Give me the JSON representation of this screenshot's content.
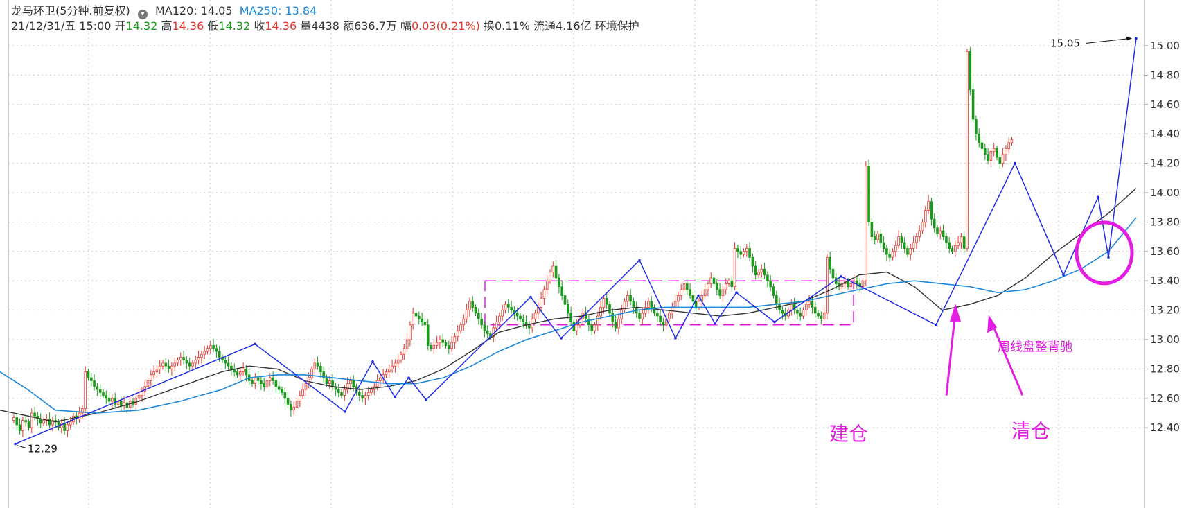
{
  "header": {
    "name": "龙马环卫(5分钟.前复权)",
    "ma120_label": "MA120: 14.05",
    "ma250_label": "MA250: 13.84",
    "datetime": "21/12/31/五 15:00",
    "open_label": "开",
    "open_value": "14.32",
    "high_label": "高",
    "high_value": "14.36",
    "low_label": "低",
    "low_value": "14.32",
    "close_label": "收",
    "close_value": "14.36",
    "volume_label": "量4438",
    "amount_label": "额636.7万",
    "change_label": "幅",
    "change_value": "0.03(0.21%)",
    "turnover_label": "换0.11%",
    "float_label": "流通4.16亿",
    "sector_label": "环境保护"
  },
  "colors": {
    "up": "#e8352a",
    "down": "#1a9a1a",
    "ma120": "#333333",
    "ma250": "#1e88d8",
    "zigzag": "#1f2ee6",
    "annotation": "#e21ee2",
    "grid": "#c8c8c8"
  },
  "chart_data": {
    "type": "candlestick",
    "ylim": [
      12.3,
      15.12
    ],
    "yticks": [
      "12.40",
      "12.60",
      "12.80",
      "13.00",
      "13.20",
      "13.40",
      "13.60",
      "13.80",
      "14.00",
      "14.20",
      "14.40",
      "14.60",
      "14.80",
      "15.00"
    ],
    "series": [
      {
        "name": "MA120",
        "kind": "line",
        "x": [
          0,
          40,
          80,
          140,
          200,
          260,
          320,
          360,
          400,
          440,
          480,
          520,
          560,
          600,
          640,
          680,
          720,
          760,
          800,
          840,
          880,
          920,
          960,
          1000,
          1040,
          1080,
          1120,
          1160,
          1200,
          1240,
          1280,
          1320,
          1360,
          1400,
          1440,
          1480,
          1520,
          1560,
          1600,
          1640
        ],
        "values": [
          12.52,
          12.48,
          12.44,
          12.5,
          12.58,
          12.68,
          12.78,
          12.82,
          12.8,
          12.72,
          12.68,
          12.66,
          12.68,
          12.72,
          12.8,
          12.92,
          13.05,
          13.1,
          13.14,
          13.16,
          13.2,
          13.22,
          13.2,
          13.18,
          13.16,
          13.18,
          13.22,
          13.26,
          13.34,
          13.44,
          13.46,
          13.36,
          13.2,
          13.24,
          13.3,
          13.42,
          13.58,
          13.72,
          13.86,
          14.03
        ]
      },
      {
        "name": "MA250",
        "kind": "line",
        "x": [
          0,
          40,
          80,
          140,
          200,
          260,
          320,
          360,
          400,
          440,
          480,
          520,
          560,
          600,
          640,
          680,
          720,
          760,
          800,
          840,
          880,
          920,
          960,
          1000,
          1040,
          1080,
          1120,
          1160,
          1200,
          1240,
          1280,
          1320,
          1360,
          1400,
          1440,
          1480,
          1520,
          1560,
          1600,
          1640
        ],
        "values": [
          12.78,
          12.66,
          12.52,
          12.5,
          12.52,
          12.58,
          12.66,
          12.74,
          12.76,
          12.76,
          12.74,
          12.72,
          12.7,
          12.7,
          12.74,
          12.82,
          12.92,
          13.0,
          13.06,
          13.12,
          13.16,
          13.2,
          13.22,
          13.22,
          13.22,
          13.22,
          13.24,
          13.26,
          13.3,
          13.34,
          13.38,
          13.4,
          13.38,
          13.36,
          13.32,
          13.34,
          13.4,
          13.48,
          13.6,
          13.83
        ]
      },
      {
        "name": "zigzag",
        "kind": "polyline",
        "x": [
          22,
          368,
          498,
          538,
          570,
          590,
          615,
          766,
          810,
          923,
          975,
          1008,
          1032,
          1063,
          1118,
          1214,
          1351,
          1465,
          1535,
          1585,
          1600,
          1640
        ],
        "values": [
          12.29,
          12.97,
          12.51,
          12.85,
          12.61,
          12.74,
          12.59,
          13.29,
          13.01,
          13.54,
          13.01,
          13.3,
          13.11,
          13.32,
          13.12,
          13.43,
          13.1,
          14.2,
          13.44,
          13.97,
          13.56,
          15.05
        ]
      }
    ],
    "candles": {
      "x_start": 20,
      "x_step": 4.3,
      "closes": [
        12.47,
        12.42,
        12.38,
        12.45,
        12.44,
        12.4,
        12.5,
        12.48,
        12.46,
        12.43,
        12.45,
        12.46,
        12.42,
        12.45,
        12.44,
        12.4,
        12.43,
        12.38,
        12.42,
        12.44,
        12.48,
        12.46,
        12.5,
        12.53,
        12.78,
        12.74,
        12.72,
        12.68,
        12.66,
        12.64,
        12.62,
        12.6,
        12.58,
        12.6,
        12.56,
        12.58,
        12.55,
        12.57,
        12.54,
        12.58,
        12.56,
        12.6,
        12.62,
        12.65,
        12.68,
        12.72,
        12.76,
        12.78,
        12.8,
        12.82,
        12.84,
        12.82,
        12.8,
        12.82,
        12.84,
        12.86,
        12.88,
        12.86,
        12.84,
        12.82,
        12.84,
        12.86,
        12.88,
        12.9,
        12.92,
        12.94,
        12.96,
        12.94,
        12.92,
        12.88,
        12.86,
        12.84,
        12.82,
        12.8,
        12.78,
        12.76,
        12.78,
        12.8,
        12.76,
        12.72,
        12.7,
        12.74,
        12.72,
        12.7,
        12.68,
        12.72,
        12.74,
        12.72,
        12.68,
        12.66,
        12.64,
        12.6,
        12.56,
        12.52,
        12.54,
        12.58,
        12.62,
        12.66,
        12.7,
        12.74,
        12.8,
        12.84,
        12.82,
        12.78,
        12.74,
        12.7,
        12.72,
        12.68,
        12.66,
        12.64,
        12.62,
        12.66,
        12.7,
        12.72,
        12.68,
        12.64,
        12.62,
        12.6,
        12.62,
        12.64,
        12.66,
        12.68,
        12.72,
        12.74,
        12.76,
        12.78,
        12.8,
        12.82,
        12.84,
        12.86,
        12.9,
        12.94,
        13.0,
        13.1,
        13.18,
        13.16,
        13.14,
        13.12,
        13.1,
        12.96,
        12.94,
        12.96,
        12.98,
        13.0,
        12.98,
        12.96,
        12.94,
        12.98,
        13.02,
        13.06,
        13.1,
        13.14,
        13.2,
        13.26,
        13.22,
        13.18,
        13.14,
        13.1,
        13.06,
        13.04,
        13.02,
        13.08,
        13.12,
        13.16,
        13.2,
        13.24,
        13.22,
        13.2,
        13.18,
        13.16,
        13.14,
        13.12,
        13.1,
        13.08,
        13.14,
        13.18,
        13.22,
        13.28,
        13.34,
        13.4,
        13.46,
        13.5,
        13.42,
        13.36,
        13.3,
        13.24,
        13.18,
        13.12,
        13.06,
        13.1,
        13.14,
        13.18,
        13.14,
        13.1,
        13.06,
        13.1,
        13.16,
        13.22,
        13.28,
        13.24,
        13.18,
        13.12,
        13.08,
        13.14,
        13.2,
        13.26,
        13.3,
        13.26,
        13.22,
        13.18,
        13.14,
        13.18,
        13.22,
        13.26,
        13.22,
        13.18,
        13.16,
        13.12,
        13.1,
        13.14,
        13.18,
        13.22,
        13.26,
        13.3,
        13.34,
        13.38,
        13.34,
        13.3,
        13.26,
        13.22,
        13.26,
        13.3,
        13.34,
        13.38,
        13.42,
        13.38,
        13.34,
        13.3,
        13.34,
        13.38,
        13.4,
        13.36,
        13.62,
        13.6,
        13.58,
        13.6,
        13.62,
        13.56,
        13.5,
        13.44,
        13.46,
        13.48,
        13.44,
        13.4,
        13.36,
        13.3,
        13.24,
        13.2,
        13.18,
        13.16,
        13.2,
        13.24,
        13.2,
        13.18,
        13.16,
        13.2,
        13.24,
        13.26,
        13.22,
        13.18,
        13.16,
        13.14,
        13.18,
        13.56,
        13.48,
        13.42,
        13.38,
        13.36,
        13.38,
        13.4,
        13.36,
        13.38,
        13.4,
        13.38,
        13.36,
        13.4,
        14.18,
        13.8,
        13.7,
        13.68,
        13.72,
        13.66,
        13.62,
        13.58,
        13.56,
        13.6,
        13.64,
        13.7,
        13.66,
        13.62,
        13.58,
        13.62,
        13.66,
        13.7,
        13.74,
        13.8,
        13.88,
        13.94,
        13.82,
        13.76,
        13.72,
        13.74,
        13.7,
        13.66,
        13.62,
        13.6,
        13.64,
        13.66,
        13.7,
        13.62,
        14.96,
        14.7,
        14.5,
        14.4,
        14.34,
        14.3,
        14.26,
        14.22,
        14.28,
        14.3,
        14.24,
        14.2,
        14.26,
        14.3,
        14.34,
        14.36
      ]
    },
    "zones": [
      {
        "name": "consolidation-box",
        "x_from": 700,
        "x_to": 1232,
        "y_from": 13.1,
        "y_to": 13.4
      }
    ],
    "annotations": [
      {
        "text": "15.05",
        "x": 1640,
        "y": 15.05
      },
      {
        "text": "12.29",
        "x": 22,
        "y": 12.29
      },
      {
        "text": "周线盘整背驰",
        "x": 1440,
        "y": 12.95
      },
      {
        "text": "建仓",
        "x": 1243,
        "y": 12.36
      },
      {
        "text": "清仓",
        "x": 1386,
        "y": 12.38
      }
    ]
  }
}
